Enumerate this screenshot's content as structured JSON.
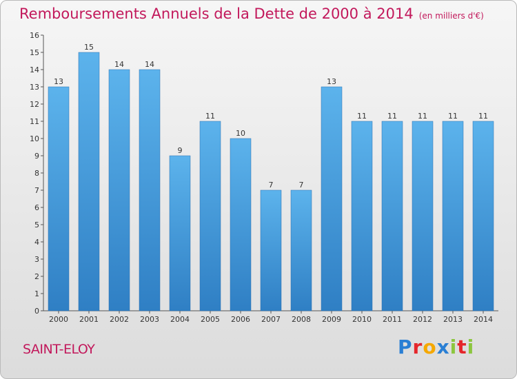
{
  "chart_data": {
    "type": "bar",
    "title": "Remboursements Annuels de la Dette de 2000 à 2014",
    "subtitle": "(en milliers d'€)",
    "categories": [
      "2000",
      "2001",
      "2002",
      "2003",
      "2004",
      "2005",
      "2006",
      "2007",
      "2008",
      "2009",
      "2010",
      "2011",
      "2012",
      "2013",
      "2014"
    ],
    "values": [
      13,
      15,
      14,
      14,
      9,
      11,
      10,
      7,
      7,
      13,
      11,
      11,
      11,
      11,
      11
    ],
    "ylim": [
      0,
      16
    ],
    "yticks": [
      0,
      1,
      2,
      3,
      4,
      5,
      6,
      7,
      8,
      9,
      10,
      11,
      12,
      13,
      14,
      15,
      16
    ],
    "grid": false,
    "bar_color": "#4a9fe0"
  },
  "footer": {
    "commune": "SAINT-ELOY",
    "logo_letters": [
      "P",
      "r",
      "o",
      "x",
      "i",
      "t",
      "i"
    ],
    "logo_colors": [
      "#2a7fd4",
      "#e5262b",
      "#f5a800",
      "#2a7fd4",
      "#8cc63f",
      "#e5262b",
      "#8cc63f"
    ]
  },
  "colors": {
    "title": "#c2185b",
    "axis": "#555555"
  }
}
